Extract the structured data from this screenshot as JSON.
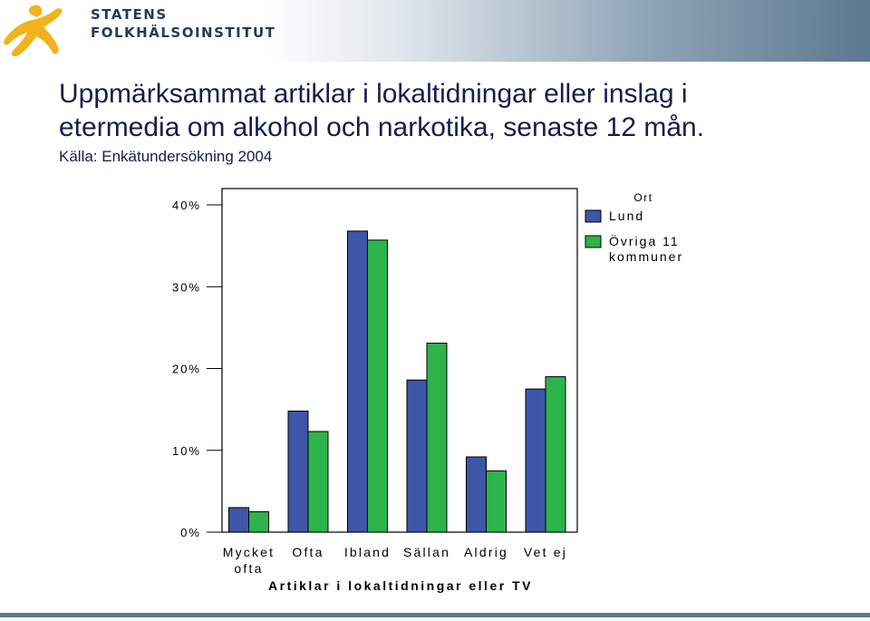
{
  "header": {
    "org_line1": "STATENS",
    "org_line2": "FOLKHÄLSOINSTITUT",
    "logo_icon": "running-figure-icon"
  },
  "title_line1": "Uppmärksammat artiklar i lokaltidningar eller inslag i",
  "title_line2": "etermedia om alkohol och narkotika, senaste 12 mån.",
  "source": "Källa: Enkätundersökning 2004",
  "colors": {
    "lund": "#3d56a8",
    "ovriga": "#2db44a",
    "header_dark": "#5c7890",
    "title": "#1a1a50"
  },
  "chart_data": {
    "type": "bar",
    "categories": [
      [
        "Mycket",
        "ofta"
      ],
      [
        "Ofta"
      ],
      [
        "Ibland"
      ],
      [
        "Sällan"
      ],
      [
        "Aldrig"
      ],
      [
        "Vet ej"
      ]
    ],
    "series": [
      {
        "name": "Lund",
        "values": [
          3.0,
          14.8,
          36.8,
          18.6,
          9.2,
          17.5
        ]
      },
      {
        "name": "Övriga 11 kommuner",
        "values": [
          2.5,
          12.3,
          35.7,
          23.1,
          7.5,
          19.0
        ]
      }
    ],
    "ylim": [
      0,
      42
    ],
    "yticks": [
      "0%",
      "10%",
      "20%",
      "30%",
      "40%"
    ],
    "ytick_values": [
      0,
      10,
      20,
      30,
      40
    ],
    "xlabel": "Artiklar i lokaltidningar eller TV",
    "ylabel": "",
    "legend_title": "Ort",
    "legend_items": [
      [
        "Lund"
      ],
      [
        "Övriga 11",
        "kommuner"
      ]
    ],
    "legend_position": "right",
    "grid": false
  }
}
